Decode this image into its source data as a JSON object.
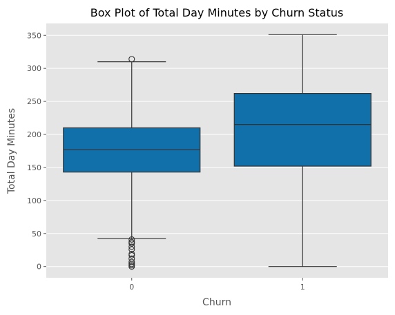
{
  "chart_data": {
    "type": "box",
    "title": "Box Plot of Total Day Minutes by Churn Status",
    "xlabel": "Churn",
    "ylabel": "Total Day Minutes",
    "ylim": [
      -17,
      368
    ],
    "yticks": [
      0,
      50,
      100,
      150,
      200,
      250,
      300,
      350
    ],
    "ytick_labels": [
      "0",
      "50",
      "100",
      "150",
      "200",
      "250",
      "300",
      "350"
    ],
    "grid": true,
    "background": "#e5e5e5",
    "grid_color": "#ffffff",
    "box_color": "#1170aa",
    "line_color": "#333333",
    "categories": [
      "0",
      "1"
    ],
    "boxes": [
      {
        "category": "0",
        "whisker_low": 42,
        "q1": 143,
        "median": 177,
        "q3": 210,
        "whisker_high": 310,
        "outliers": [
          314,
          41,
          37,
          35,
          30,
          26,
          19,
          17,
          12,
          7,
          4,
          2,
          0
        ]
      },
      {
        "category": "1",
        "whisker_low": 0,
        "q1": 152,
        "median": 215,
        "q3": 262,
        "whisker_high": 351,
        "outliers": []
      }
    ]
  }
}
